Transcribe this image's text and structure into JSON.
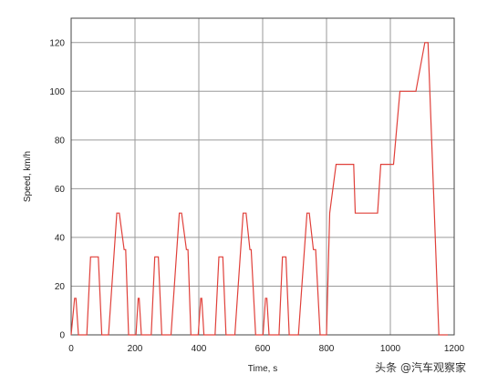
{
  "chart_data": {
    "type": "line",
    "xlabel": "Time, s",
    "ylabel": "Speed, km/h",
    "xlim": [
      0,
      1200
    ],
    "ylim": [
      0,
      130
    ],
    "xticks": [
      0,
      200,
      400,
      600,
      800,
      1000,
      1200
    ],
    "yticks": [
      0,
      20,
      40,
      60,
      80,
      100,
      120
    ],
    "grid": true,
    "line_color": "#e0403a",
    "series": [
      {
        "x": [
          0,
          11,
          15,
          23,
          28,
          49,
          61,
          69,
          85,
          96,
          117,
          143,
          151,
          166,
          171,
          180,
          195,
          203,
          210,
          213,
          220,
          229,
          251,
          262,
          273,
          284,
          313,
          339,
          346,
          361,
          366,
          375,
          390,
          398,
          406,
          409,
          416,
          429,
          451,
          463,
          475,
          485,
          513,
          539,
          548,
          560,
          564,
          578,
          593,
          601,
          609,
          613,
          620,
          629,
          651,
          662,
          673,
          683,
          712,
          739,
          746,
          759,
          766,
          780,
          800,
          810,
          830,
          840,
          885,
          890,
          960,
          970,
          1010,
          1030,
          1050,
          1080,
          1108,
          1118,
          1152,
          1160,
          1180
        ],
        "y": [
          0,
          15,
          15,
          0,
          0,
          0,
          32,
          32,
          32,
          0,
          0,
          50,
          50,
          35,
          35,
          0,
          0,
          0,
          15,
          15,
          0,
          0,
          0,
          32,
          32,
          0,
          0,
          50,
          50,
          35,
          35,
          0,
          0,
          0,
          15,
          15,
          0,
          0,
          0,
          32,
          32,
          0,
          0,
          50,
          50,
          35,
          35,
          0,
          0,
          0,
          15,
          15,
          0,
          0,
          0,
          32,
          32,
          0,
          0,
          50,
          50,
          35,
          35,
          0,
          0,
          50,
          70,
          70,
          70,
          50,
          50,
          70,
          70,
          100,
          100,
          100,
          120,
          120,
          0,
          0,
          0
        ]
      }
    ]
  },
  "watermark": "头条 @汽车观察家"
}
